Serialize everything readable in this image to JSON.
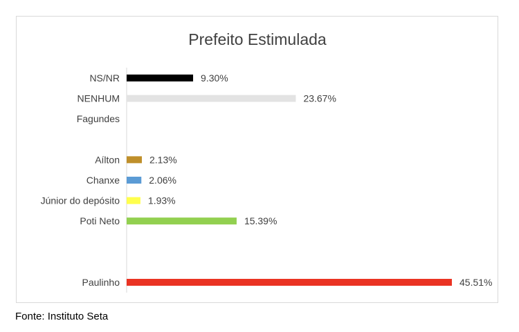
{
  "chart_data": {
    "type": "bar",
    "orientation": "horizontal",
    "title": "Prefeito Estimulada",
    "xlabel": "",
    "ylabel": "",
    "grid": false,
    "legend": "none",
    "categories": [
      "NS/NR",
      "NENHUM",
      "Fagundes",
      "",
      "Aílton",
      "Chanxe",
      "Júnior do depósito",
      "Poti Neto",
      "",
      "",
      "Paulinho"
    ],
    "values": [
      9.3,
      23.67,
      null,
      null,
      2.13,
      2.06,
      1.93,
      15.39,
      null,
      null,
      45.51
    ],
    "value_labels": [
      "9.30%",
      "23.67%",
      "",
      "",
      "2.13%",
      "2.06%",
      "1.93%",
      "15.39%",
      "",
      "",
      "45.51%"
    ],
    "colors": [
      "#000000",
      "#e3e3e3",
      "#ffffff",
      "#ffffff",
      "#bf8f2a",
      "#5b9bd5",
      "#ffff4d",
      "#92d050",
      "#ffffff",
      "#ffffff",
      "#ea3323"
    ],
    "xlim": [
      0,
      45.51
    ]
  },
  "source_note": "Fonte: Instituto Seta"
}
